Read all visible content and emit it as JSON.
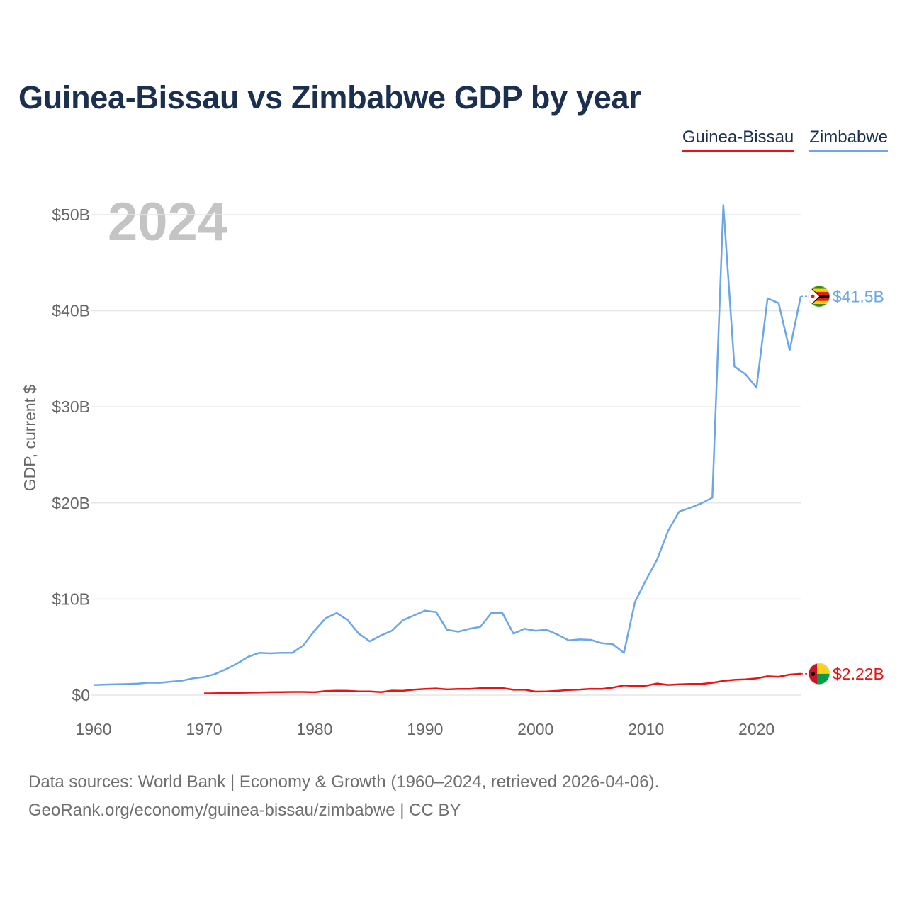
{
  "title": "Guinea-Bissau vs Zimbabwe GDP by year",
  "legend": {
    "guinea_bissau": "Guinea-Bissau",
    "zimbabwe": "Zimbabwe"
  },
  "year_watermark": "2024",
  "colors": {
    "guinea_bissau": "#ee1111",
    "zimbabwe": "#6aa6e8",
    "title": "#1b2f4e",
    "grid": "#e6e6e6",
    "axis_text": "#666666",
    "watermark": "#c4c4c4"
  },
  "source": {
    "line1": "Data sources: World Bank | Economy & Growth (1960–2024, retrieved 2026-04-06).",
    "line2": "GeoRank.org/economy/guinea-bissau/zimbabwe | CC BY"
  },
  "chart_data": {
    "type": "line",
    "title": "Guinea-Bissau vs Zimbabwe GDP by year",
    "xlabel": "",
    "ylabel": "GDP, current $",
    "xlim": [
      1960,
      2024
    ],
    "ylim": [
      0,
      50
    ],
    "unit": "billions USD",
    "x_ticks": [
      1960,
      1970,
      1980,
      1990,
      2000,
      2010,
      2020
    ],
    "x_tick_labels": [
      "1960",
      "1970",
      "1980",
      "1990",
      "2000",
      "2010",
      "2020"
    ],
    "y_ticks": [
      0,
      10,
      20,
      30,
      40,
      50
    ],
    "y_tick_labels": [
      "$0",
      "$10B",
      "$20B",
      "$30B",
      "$40B",
      "$50B"
    ],
    "grid": true,
    "legend_position": "top-right",
    "series": [
      {
        "name": "Guinea-Bissau",
        "color": "#ee1111",
        "end_label": "$2.22B",
        "x": [
          1970,
          1971,
          1972,
          1973,
          1974,
          1975,
          1976,
          1977,
          1978,
          1979,
          1980,
          1981,
          1982,
          1983,
          1984,
          1985,
          1986,
          1987,
          1988,
          1989,
          1990,
          1991,
          1992,
          1993,
          1994,
          1995,
          1996,
          1997,
          1998,
          1999,
          2000,
          2001,
          2002,
          2003,
          2004,
          2005,
          2006,
          2007,
          2008,
          2009,
          2010,
          2011,
          2012,
          2013,
          2014,
          2015,
          2016,
          2017,
          2018,
          2019,
          2020,
          2021,
          2022,
          2023,
          2024
        ],
        "values": [
          0.18,
          0.19,
          0.22,
          0.24,
          0.26,
          0.28,
          0.3,
          0.31,
          0.33,
          0.33,
          0.3,
          0.43,
          0.46,
          0.45,
          0.38,
          0.38,
          0.32,
          0.47,
          0.45,
          0.57,
          0.65,
          0.69,
          0.6,
          0.64,
          0.65,
          0.72,
          0.74,
          0.74,
          0.56,
          0.57,
          0.37,
          0.39,
          0.45,
          0.54,
          0.58,
          0.66,
          0.65,
          0.78,
          1.02,
          0.94,
          0.98,
          1.21,
          1.06,
          1.12,
          1.16,
          1.16,
          1.28,
          1.48,
          1.59,
          1.64,
          1.74,
          1.96,
          1.91,
          2.14,
          2.22
        ]
      },
      {
        "name": "Zimbabwe",
        "color": "#6aa6e8",
        "end_label": "$41.5B",
        "x": [
          1960,
          1961,
          1962,
          1963,
          1964,
          1965,
          1966,
          1967,
          1968,
          1969,
          1970,
          1971,
          1972,
          1973,
          1974,
          1975,
          1976,
          1977,
          1978,
          1979,
          1980,
          1981,
          1982,
          1983,
          1984,
          1985,
          1986,
          1987,
          1988,
          1989,
          1990,
          1991,
          1992,
          1993,
          1994,
          1995,
          1996,
          1997,
          1998,
          1999,
          2000,
          2001,
          2002,
          2003,
          2004,
          2005,
          2006,
          2007,
          2008,
          2009,
          2010,
          2011,
          2012,
          2013,
          2014,
          2015,
          2016,
          2017,
          2018,
          2019,
          2020,
          2021,
          2022,
          2023,
          2024
        ],
        "values": [
          1.05,
          1.1,
          1.12,
          1.15,
          1.2,
          1.3,
          1.28,
          1.4,
          1.5,
          1.75,
          1.88,
          2.2,
          2.7,
          3.3,
          4.0,
          4.4,
          4.35,
          4.4,
          4.4,
          5.2,
          6.7,
          8.0,
          8.55,
          7.8,
          6.4,
          5.6,
          6.2,
          6.7,
          7.8,
          8.3,
          8.8,
          8.65,
          6.8,
          6.6,
          6.9,
          7.1,
          8.55,
          8.55,
          6.4,
          6.9,
          6.7,
          6.8,
          6.3,
          5.7,
          5.8,
          5.75,
          5.4,
          5.3,
          4.4,
          9.7,
          12.0,
          14.1,
          17.1,
          19.1,
          19.5,
          19.96,
          20.55,
          51.0,
          34.2,
          33.4,
          32.0,
          41.3,
          40.8,
          35.9,
          41.5
        ]
      }
    ]
  }
}
